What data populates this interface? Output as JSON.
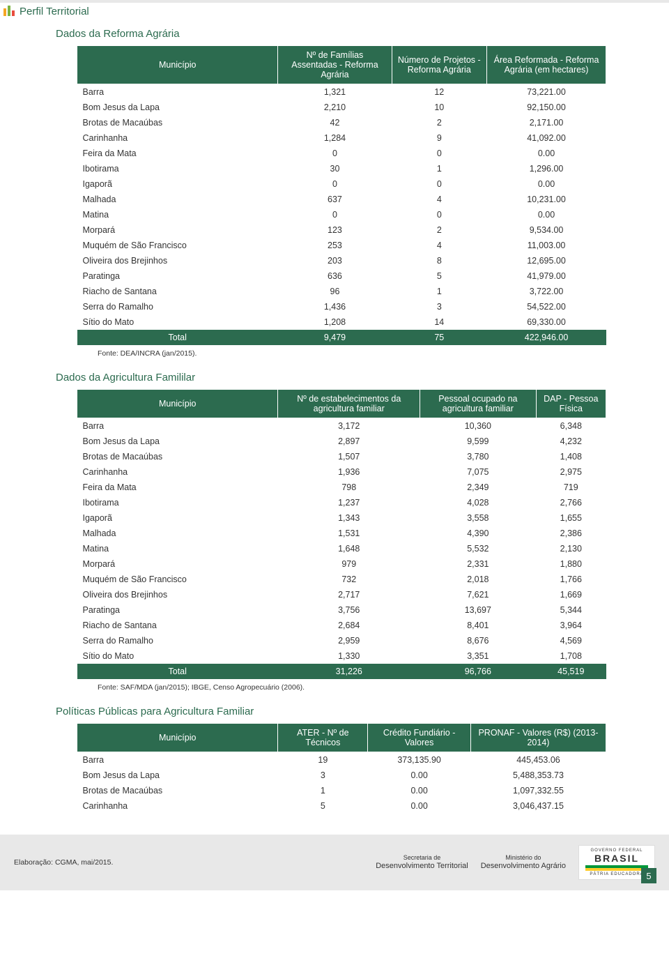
{
  "header": {
    "title": "Perfil Territorial"
  },
  "sections": {
    "reforma": {
      "title": "Dados da Reforma Agrária",
      "columns": [
        "Município",
        "Nº de Famílias Assentadas - Reforma Agrária",
        "Número de Projetos - Reforma Agrária",
        "Área Reformada - Reforma Agrária (em hectares)"
      ],
      "rows": [
        [
          "Barra",
          "1,321",
          "12",
          "73,221.00"
        ],
        [
          "Bom Jesus da Lapa",
          "2,210",
          "10",
          "92,150.00"
        ],
        [
          "Brotas de Macaúbas",
          "42",
          "2",
          "2,171.00"
        ],
        [
          "Carinhanha",
          "1,284",
          "9",
          "41,092.00"
        ],
        [
          "Feira da Mata",
          "0",
          "0",
          "0.00"
        ],
        [
          "Ibotirama",
          "30",
          "1",
          "1,296.00"
        ],
        [
          "Igaporã",
          "0",
          "0",
          "0.00"
        ],
        [
          "Malhada",
          "637",
          "4",
          "10,231.00"
        ],
        [
          "Matina",
          "0",
          "0",
          "0.00"
        ],
        [
          "Morpará",
          "123",
          "2",
          "9,534.00"
        ],
        [
          "Muquém de São Francisco",
          "253",
          "4",
          "11,003.00"
        ],
        [
          "Oliveira dos Brejinhos",
          "203",
          "8",
          "12,695.00"
        ],
        [
          "Paratinga",
          "636",
          "5",
          "41,979.00"
        ],
        [
          "Riacho de Santana",
          "96",
          "1",
          "3,722.00"
        ],
        [
          "Serra do Ramalho",
          "1,436",
          "3",
          "54,522.00"
        ],
        [
          "Sítio do Mato",
          "1,208",
          "14",
          "69,330.00"
        ]
      ],
      "total": [
        "Total",
        "9,479",
        "75",
        "422,946.00"
      ],
      "source": "Fonte: DEA/INCRA (jan/2015)."
    },
    "familiar": {
      "title": "Dados da Agricultura Famililar",
      "columns": [
        "Município",
        "Nº de estabelecimentos da agricultura familiar",
        "Pessoal ocupado na agricultura familiar",
        "DAP - Pessoa Física"
      ],
      "rows": [
        [
          "Barra",
          "3,172",
          "10,360",
          "6,348"
        ],
        [
          "Bom Jesus da Lapa",
          "2,897",
          "9,599",
          "4,232"
        ],
        [
          "Brotas de Macaúbas",
          "1,507",
          "3,780",
          "1,408"
        ],
        [
          "Carinhanha",
          "1,936",
          "7,075",
          "2,975"
        ],
        [
          "Feira da Mata",
          "798",
          "2,349",
          "719"
        ],
        [
          "Ibotirama",
          "1,237",
          "4,028",
          "2,766"
        ],
        [
          "Igaporã",
          "1,343",
          "3,558",
          "1,655"
        ],
        [
          "Malhada",
          "1,531",
          "4,390",
          "2,386"
        ],
        [
          "Matina",
          "1,648",
          "5,532",
          "2,130"
        ],
        [
          "Morpará",
          "979",
          "2,331",
          "1,880"
        ],
        [
          "Muquém de São Francisco",
          "732",
          "2,018",
          "1,766"
        ],
        [
          "Oliveira dos Brejinhos",
          "2,717",
          "7,621",
          "1,669"
        ],
        [
          "Paratinga",
          "3,756",
          "13,697",
          "5,344"
        ],
        [
          "Riacho de Santana",
          "2,684",
          "8,401",
          "3,964"
        ],
        [
          "Serra do Ramalho",
          "2,959",
          "8,676",
          "4,569"
        ],
        [
          "Sítio do Mato",
          "1,330",
          "3,351",
          "1,708"
        ]
      ],
      "total": [
        "Total",
        "31,226",
        "96,766",
        "45,519"
      ],
      "source": "Fonte: SAF/MDA (jan/2015); IBGE, Censo Agropecuário (2006)."
    },
    "politicas": {
      "title": "Políticas Públicas para Agricultura Familiar",
      "columns": [
        "Município",
        "ATER - Nº de Técnicos",
        "Crédito Fundiário - Valores",
        "PRONAF - Valores (R$) (2013-2014)"
      ],
      "rows": [
        [
          "Barra",
          "19",
          "373,135.90",
          "445,453.06"
        ],
        [
          "Bom Jesus da Lapa",
          "3",
          "0.00",
          "5,488,353.73"
        ],
        [
          "Brotas de Macaúbas",
          "1",
          "0.00",
          "1,097,332.55"
        ],
        [
          "Carinhanha",
          "5",
          "0.00",
          "3,046,437.15"
        ]
      ]
    }
  },
  "footer": {
    "elaboration": "Elaboração: CGMA, mai/2015.",
    "logo1_line1": "Secretaria de",
    "logo1_line2": "Desenvolvimento Territorial",
    "logo2_line1": "Ministério do",
    "logo2_line2": "Desenvolvimento Agrário",
    "brasil": "BRASIL",
    "brasil_sub1": "GOVERNO FEDERAL",
    "brasil_sub2": "PÁTRIA EDUCADORA",
    "page": "5"
  },
  "colors": {
    "accent": "#2c6b4f",
    "header_bar": "#e8e8e8",
    "icon_orange": "#f5a623",
    "icon_green": "#7cb342",
    "icon_red": "#e84c3d"
  }
}
